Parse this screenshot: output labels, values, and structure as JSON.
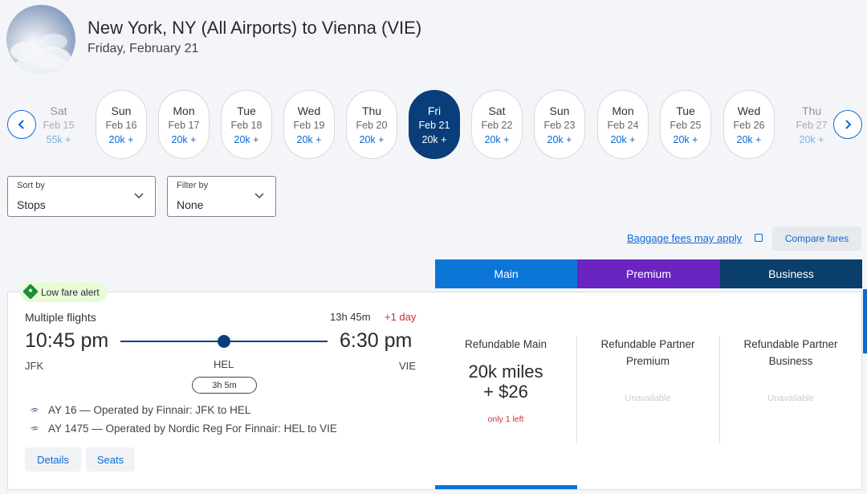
{
  "header": {
    "title": "New York, NY (All Airports) to Vienna (VIE)",
    "date": "Friday, February 21"
  },
  "date_strip": [
    {
      "dow": "Sat",
      "date": "Feb 15",
      "price": "55k +"
    },
    {
      "dow": "Sun",
      "date": "Feb 16",
      "price": "20k +"
    },
    {
      "dow": "Mon",
      "date": "Feb 17",
      "price": "20k +"
    },
    {
      "dow": "Tue",
      "date": "Feb 18",
      "price": "20k +"
    },
    {
      "dow": "Wed",
      "date": "Feb 19",
      "price": "20k +"
    },
    {
      "dow": "Thu",
      "date": "Feb 20",
      "price": "20k +"
    },
    {
      "dow": "Fri",
      "date": "Feb 21",
      "price": "20k +"
    },
    {
      "dow": "Sat",
      "date": "Feb 22",
      "price": "20k +"
    },
    {
      "dow": "Sun",
      "date": "Feb 23",
      "price": "20k +"
    },
    {
      "dow": "Mon",
      "date": "Feb 24",
      "price": "20k +"
    },
    {
      "dow": "Tue",
      "date": "Feb 25",
      "price": "20k +"
    },
    {
      "dow": "Wed",
      "date": "Feb 26",
      "price": "20k +"
    },
    {
      "dow": "Thu",
      "date": "Feb 27",
      "price": "20k +"
    }
  ],
  "sort": {
    "label": "Sort by",
    "value": "Stops"
  },
  "filter": {
    "label": "Filter by",
    "value": "None"
  },
  "links": {
    "baggage": "Baggage fees may apply",
    "compare": "Compare fares"
  },
  "fare_tabs": {
    "main": "Main",
    "premium": "Premium",
    "business": "Business"
  },
  "flight": {
    "alert": "Low fare alert",
    "type": "Multiple flights",
    "duration": "13h 45m",
    "plus_day": "+1 day",
    "depart_time": "10:45 pm",
    "arrive_time": "6:30 pm",
    "depart_code": "JFK",
    "layover_code": "HEL",
    "arrive_code": "VIE",
    "layover_duration": "3h 5m",
    "segments": [
      "AY 16 — Operated by Finnair: JFK to HEL",
      "AY 1475 — Operated by Nordic Reg For Finnair: HEL to VIE"
    ],
    "details_btn": "Details",
    "seats_btn": "Seats"
  },
  "fares": {
    "main": {
      "name": "Refundable Main",
      "miles": "20k miles",
      "cash": "+ $26",
      "note": "only 1 left"
    },
    "premium": {
      "name": "Refundable Partner Premium",
      "status": "Unavailable"
    },
    "business": {
      "name": "Refundable Partner Business",
      "status": "Unavailable"
    }
  },
  "colors": {
    "accent": "#0b6ad1",
    "selected_day": "#0a3e7a",
    "premium": "#6a24c0",
    "business": "#0b3f6b",
    "alert_red": "#d02f2f"
  }
}
